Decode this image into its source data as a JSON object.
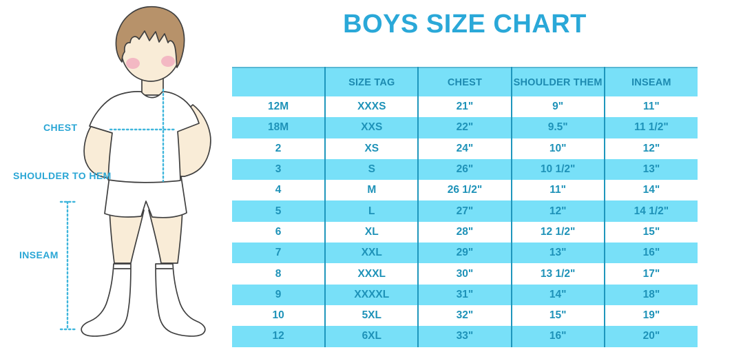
{
  "title": "BOYS SIZE CHART",
  "figure": {
    "labels": {
      "chest": "CHEST",
      "shoulder_to_hem": "SHOULDER TO HEM",
      "inseam": "INSEAM"
    }
  },
  "colors": {
    "accent_blue": "#2aa8d8",
    "row_cyan": "#78e0f8",
    "divider_teal": "#1e96bc",
    "table_text_teal": "#1e92b8",
    "dotted_line_blue": "#3fb6dc",
    "hair_brown": "#b7926a",
    "skin": "#f9ecd7",
    "cheek_pink": "#f3b8c3"
  },
  "chart_data": {
    "type": "table",
    "title": "BOYS SIZE CHART",
    "columns": [
      "",
      "SIZE TAG",
      "CHEST",
      "SHOULDER THEM",
      "INSEAM"
    ],
    "rows": [
      [
        "12M",
        "XXXS",
        "21\"",
        "9\"",
        "11\""
      ],
      [
        "18M",
        "XXS",
        "22\"",
        "9.5\"",
        "11 1/2\""
      ],
      [
        "2",
        "XS",
        "24\"",
        "10\"",
        "12\""
      ],
      [
        "3",
        "S",
        "26\"",
        "10 1/2\"",
        "13\""
      ],
      [
        "4",
        "M",
        "26 1/2\"",
        "11\"",
        "14\""
      ],
      [
        "5",
        "L",
        "27\"",
        "12\"",
        "14 1/2\""
      ],
      [
        "6",
        "XL",
        "28\"",
        "12 1/2\"",
        "15\""
      ],
      [
        "7",
        "XXL",
        "29\"",
        "13\"",
        "16\""
      ],
      [
        "8",
        "XXXL",
        "30\"",
        "13 1/2\"",
        "17\""
      ],
      [
        "9",
        "XXXXL",
        "31\"",
        "14\"",
        "18\""
      ],
      [
        "10",
        "5XL",
        "32\"",
        "15\"",
        "19\""
      ],
      [
        "12",
        "6XL",
        "33\"",
        "16\"",
        "20\""
      ]
    ]
  }
}
